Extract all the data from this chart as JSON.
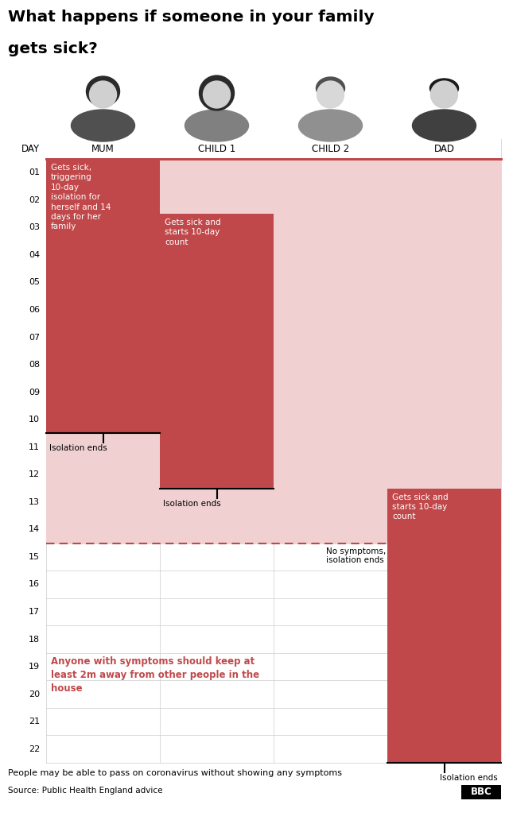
{
  "title_line1": "What happens if someone in your family",
  "title_line2": "gets sick?",
  "columns": [
    "MUM",
    "CHILD 1",
    "CHILD 2",
    "DAD"
  ],
  "n_days": 22,
  "dark_red": "#c0484a",
  "light_pink": "#f0d0d0",
  "grid_line_color": "#cccccc",
  "footnote": "People may be able to pass on coronavirus without showing any symptoms",
  "source": "Source: Public Health England advice"
}
